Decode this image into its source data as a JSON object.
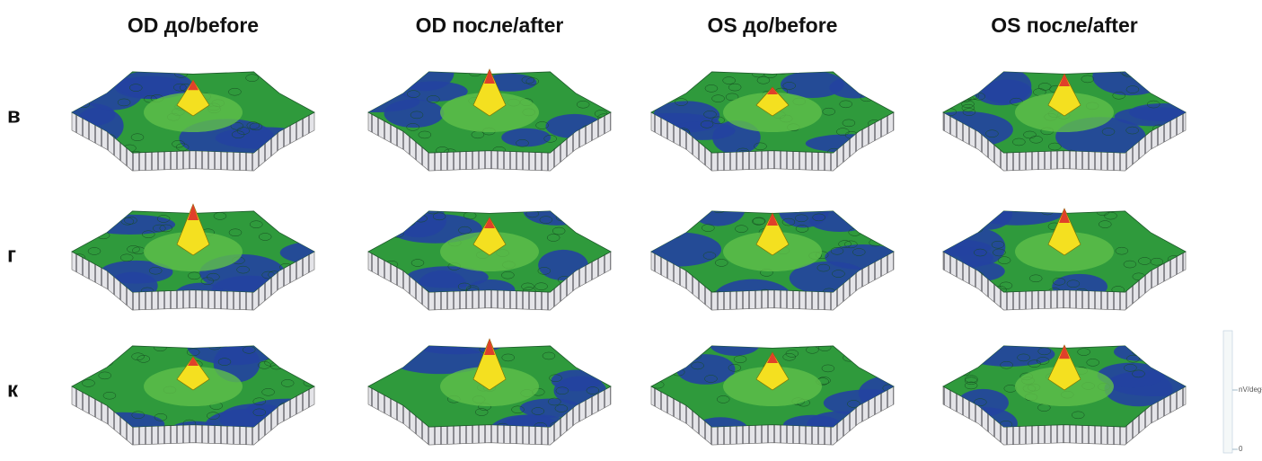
{
  "header": {
    "columns": [
      "OD до/before",
      "OD после/after",
      "OS до/before",
      "OS после/after"
    ]
  },
  "rows": [
    "в",
    "г",
    "к"
  ],
  "scale": {
    "unit_label": "nV/deg²",
    "zero_label": "0"
  }
}
